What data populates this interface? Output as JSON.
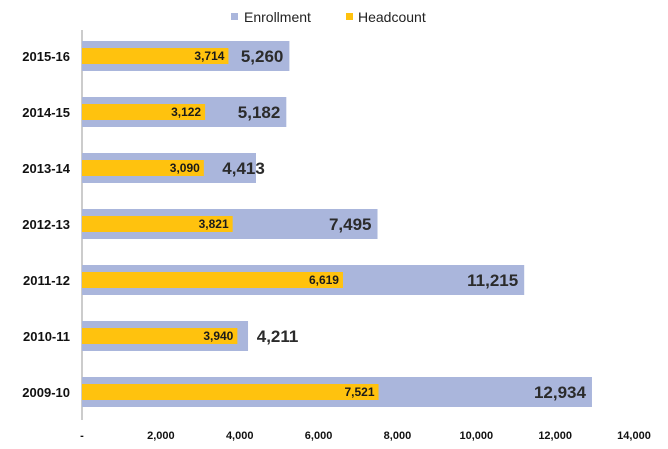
{
  "chart_data": {
    "type": "bar",
    "orientation": "horizontal",
    "categories": [
      "2015-16",
      "2014-15",
      "2013-14",
      "2012-13",
      "2011-12",
      "2010-11",
      "2009-10"
    ],
    "series": [
      {
        "name": "Enrollment",
        "color": "#aab6dc",
        "values": [
          5260,
          5182,
          4413,
          7495,
          11215,
          4211,
          12934
        ]
      },
      {
        "name": "Headcount",
        "color": "#ffc20e",
        "values": [
          3714,
          3122,
          3090,
          3821,
          6619,
          3940,
          7521
        ]
      }
    ],
    "enrollment_labels": [
      "5,260",
      "5,182",
      "4,413",
      "7,495",
      "11,215",
      "4,211",
      "12,934"
    ],
    "headcount_labels": [
      "3,714",
      "3,122",
      "3,090",
      "3,821",
      "6,619",
      "3,940",
      "7,521"
    ],
    "xticks": [
      0,
      2000,
      4000,
      6000,
      8000,
      10000,
      12000,
      14000
    ],
    "xtick_labels": [
      "-",
      "2,000",
      "4,000",
      "6,000",
      "8,000",
      "10,000",
      "12,000",
      "14,000"
    ],
    "xlim": [
      0,
      14000
    ],
    "legend_position": "top-center",
    "grid": false,
    "title": "",
    "xlabel": "",
    "ylabel": ""
  }
}
